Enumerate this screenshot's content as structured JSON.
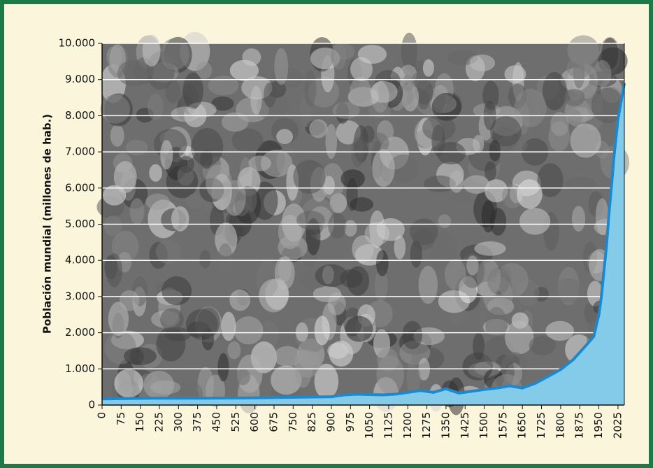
{
  "chart_data": {
    "type": "area",
    "y_label": "Población mundial (millones de hab.)",
    "x": [
      0,
      200,
      400,
      600,
      800,
      900,
      950,
      1000,
      1050,
      1100,
      1150,
      1200,
      1250,
      1300,
      1350,
      1400,
      1450,
      1500,
      1550,
      1600,
      1650,
      1700,
      1750,
      1800,
      1850,
      1900,
      1930,
      1950,
      1960,
      1970,
      1980,
      1990,
      2000,
      2010,
      2025,
      2050
    ],
    "values": [
      170,
      190,
      190,
      200,
      220,
      230,
      280,
      300,
      290,
      280,
      300,
      350,
      400,
      350,
      450,
      330,
      380,
      430,
      470,
      530,
      470,
      600,
      790,
      980,
      1260,
      1650,
      1900,
      2500,
      3000,
      3700,
      4400,
      5300,
      6100,
      6900,
      7900,
      8900
    ],
    "color": "#1a8ad0",
    "fill": "#84cbea",
    "xlim": [
      0,
      2050
    ],
    "xticks": [
      0,
      75,
      150,
      225,
      300,
      375,
      450,
      525,
      600,
      675,
      750,
      825,
      900,
      975,
      1050,
      1125,
      1200,
      1275,
      1350,
      1425,
      1500,
      1575,
      1650,
      1725,
      1800,
      1875,
      1950,
      2025
    ],
    "ylim": [
      0,
      10000
    ],
    "yticks": [
      0,
      {
        "value": 1000,
        "label": "1.000"
      },
      {
        "value": 2000,
        "label": "2.000"
      },
      {
        "value": 3000,
        "label": "3.000"
      },
      {
        "value": 4000,
        "label": "4.000"
      },
      {
        "value": 5000,
        "label": "5.000"
      },
      {
        "value": 6000,
        "label": "6.000"
      },
      {
        "value": 7000,
        "label": "7.000"
      },
      {
        "value": 8000,
        "label": "8.000"
      },
      {
        "value": 9000,
        "label": "9.000"
      },
      {
        "value": 10000,
        "label": "10.000"
      }
    ],
    "grid": true
  }
}
